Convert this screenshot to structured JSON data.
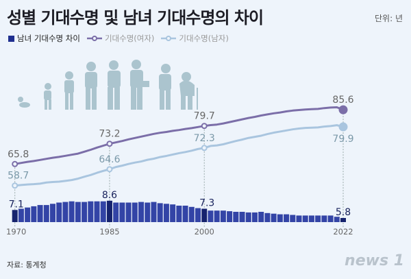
{
  "title": "성별 기대수명 및 남녀 기대수명의 차이",
  "unit": "단위: 년",
  "source": "자료: 통계청",
  "logo": "news1",
  "colors": {
    "gap": "#3344a6",
    "gap_highlight": "#16236e",
    "female": "#7b6ea8",
    "male": "#a9c5df",
    "background": "#eef4fb"
  },
  "chart_data": {
    "type": "bar+line",
    "legend": [
      "남녀 기대수명 차이",
      "기대수명(여자)",
      "기대수명(남자)"
    ],
    "x_tick_labels": [
      "1970",
      "1985",
      "2000",
      "2022"
    ],
    "x": [
      1970,
      1971,
      1972,
      1973,
      1974,
      1975,
      1976,
      1977,
      1978,
      1979,
      1980,
      1981,
      1982,
      1983,
      1984,
      1985,
      1986,
      1987,
      1988,
      1989,
      1990,
      1991,
      1992,
      1993,
      1994,
      1995,
      1996,
      1997,
      1998,
      1999,
      2000,
      2001,
      2002,
      2003,
      2004,
      2005,
      2006,
      2007,
      2008,
      2009,
      2010,
      2011,
      2012,
      2013,
      2014,
      2015,
      2016,
      2017,
      2018,
      2019,
      2020,
      2021,
      2022
    ],
    "series": [
      {
        "name": "남녀 기대수명 차이",
        "type": "bar",
        "values": [
          7.1,
          7.3,
          7.5,
          7.7,
          7.9,
          7.9,
          8.1,
          8.3,
          8.4,
          8.5,
          8.4,
          8.4,
          8.5,
          8.5,
          8.5,
          8.6,
          8.3,
          8.3,
          8.3,
          8.3,
          8.4,
          8.3,
          8.4,
          8.2,
          8.1,
          8.0,
          7.8,
          7.8,
          7.6,
          7.4,
          7.3,
          7.0,
          7.0,
          7.0,
          6.9,
          6.8,
          6.8,
          6.7,
          6.7,
          6.8,
          6.6,
          6.5,
          6.4,
          6.4,
          6.3,
          6.2,
          6.2,
          6.2,
          6.2,
          6.2,
          6.2,
          6.0,
          5.8
        ]
      },
      {
        "name": "기대수명(여자)",
        "type": "line",
        "values": [
          65.8,
          66.2,
          66.6,
          66.9,
          67.3,
          67.7,
          68.1,
          68.4,
          68.8,
          69.2,
          69.6,
          70.3,
          71.0,
          71.8,
          72.5,
          73.2,
          73.7,
          74.2,
          74.8,
          75.3,
          75.8,
          76.3,
          76.8,
          77.2,
          77.5,
          77.9,
          78.2,
          78.6,
          78.9,
          79.3,
          79.7,
          80.0,
          80.2,
          80.6,
          81.1,
          81.6,
          82.1,
          82.6,
          83.0,
          83.5,
          83.9,
          84.3,
          84.6,
          85.0,
          85.3,
          85.5,
          85.7,
          85.8,
          85.9,
          86.2,
          86.4,
          86.5,
          85.6
        ]
      },
      {
        "name": "기대수명(남자)",
        "type": "line",
        "values": [
          58.7,
          58.9,
          59.1,
          59.2,
          59.4,
          59.8,
          60.0,
          60.1,
          60.4,
          60.7,
          61.2,
          61.9,
          62.5,
          63.3,
          64.0,
          64.6,
          65.4,
          65.9,
          66.5,
          67.0,
          67.4,
          68.0,
          68.4,
          69.0,
          69.4,
          69.9,
          70.4,
          70.8,
          71.3,
          71.9,
          72.3,
          73.0,
          73.2,
          73.6,
          74.2,
          74.8,
          75.3,
          75.9,
          76.3,
          76.7,
          77.3,
          77.8,
          78.2,
          78.6,
          79.0,
          79.3,
          79.5,
          79.6,
          79.7,
          80.0,
          80.2,
          80.5,
          79.9
        ]
      }
    ],
    "annotations": {
      "gap": [
        {
          "year": 1970,
          "label": "7.1"
        },
        {
          "year": 1985,
          "label": "8.6"
        },
        {
          "year": 2000,
          "label": "7.3"
        },
        {
          "year": 2022,
          "label": "5.8"
        }
      ],
      "female": [
        {
          "year": 1970,
          "label": "65.8"
        },
        {
          "year": 1985,
          "label": "73.2"
        },
        {
          "year": 2000,
          "label": "79.7"
        },
        {
          "year": 2022,
          "label": "85.6"
        }
      ],
      "male": [
        {
          "year": 1970,
          "label": "58.7"
        },
        {
          "year": 1985,
          "label": "64.6"
        },
        {
          "year": 2000,
          "label": "72.3"
        },
        {
          "year": 2022,
          "label": "79.9"
        }
      ]
    }
  }
}
